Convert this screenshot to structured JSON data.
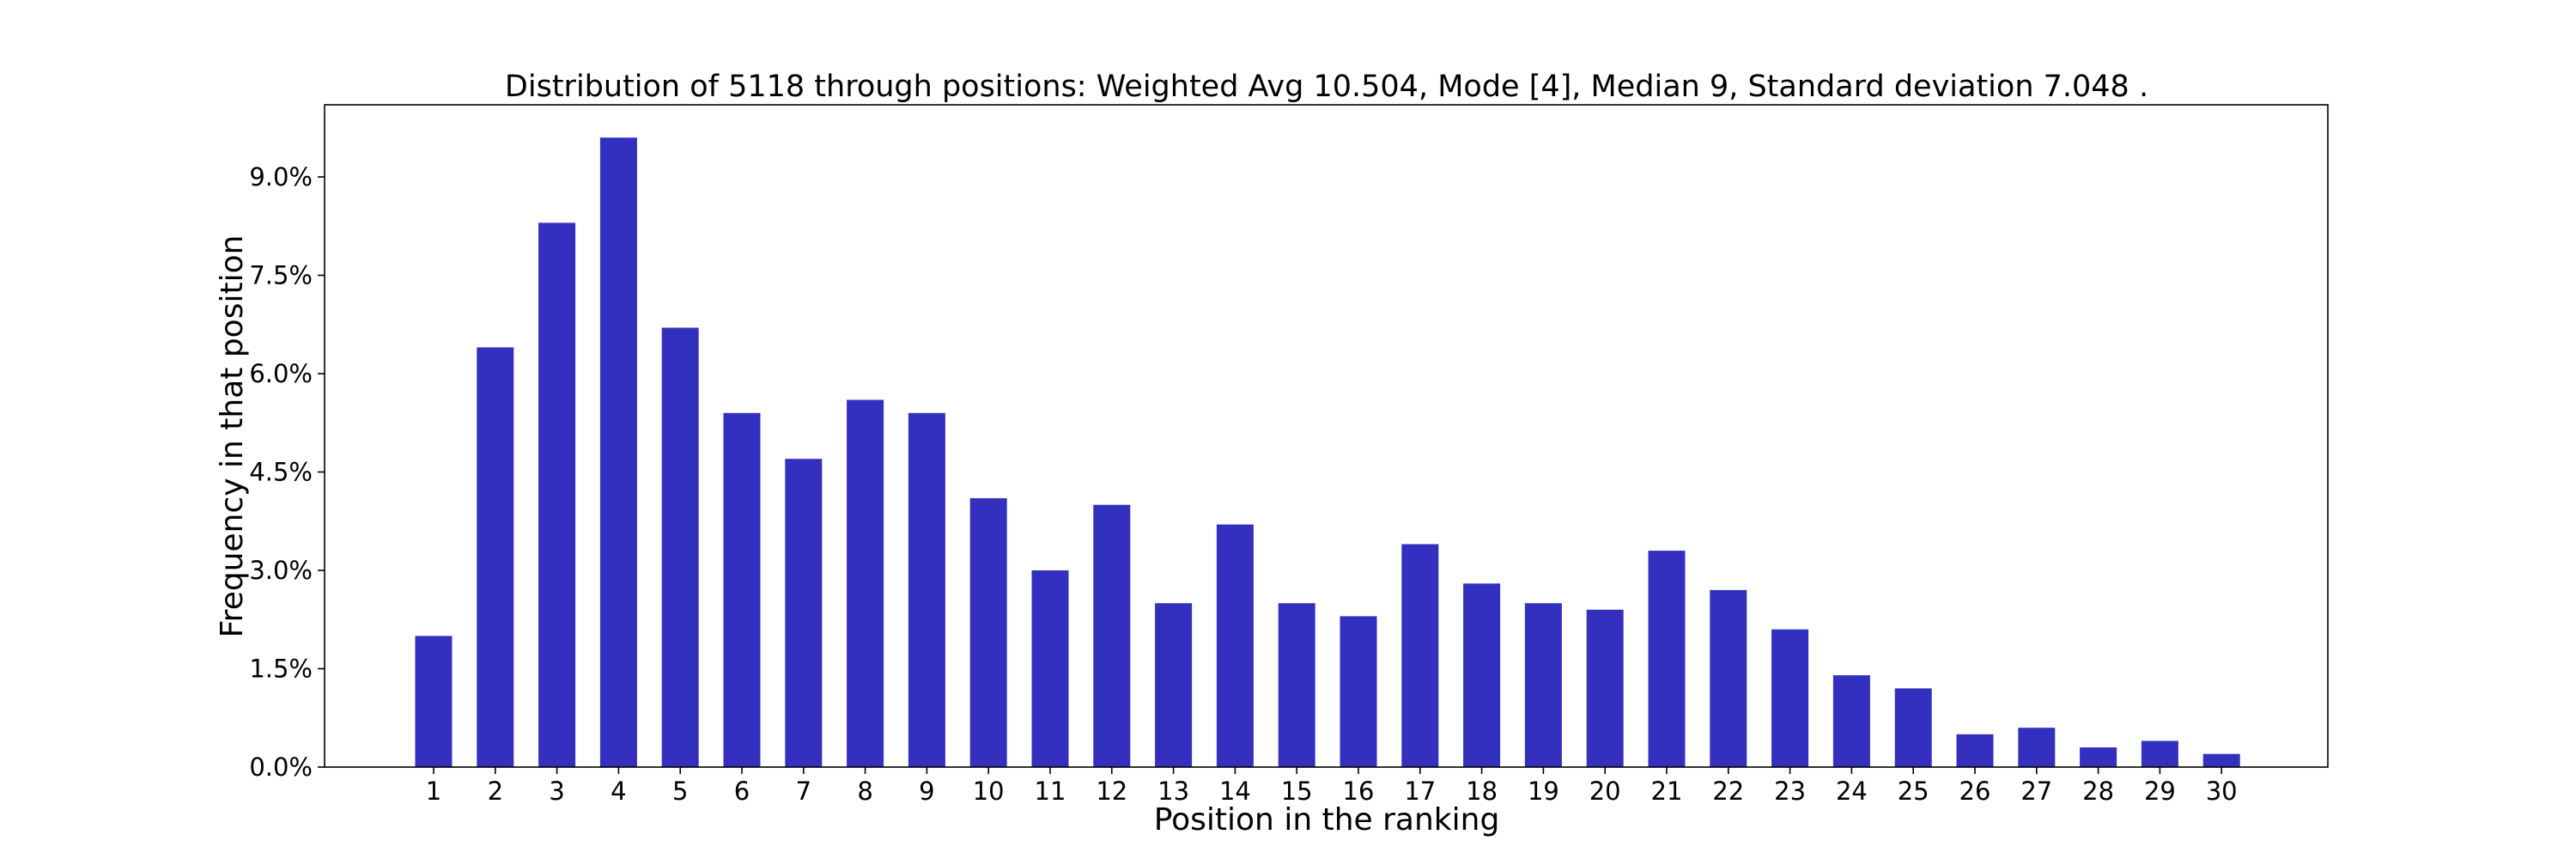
{
  "chart_data": {
    "type": "bar",
    "title": "Distribution of 5118 through positions: Weighted Avg 10.504, Mode [4], Median 9, Standard deviation 7.048 .",
    "xlabel": "Position in the ranking",
    "ylabel": "Frequency in that position",
    "categories": [
      "1",
      "2",
      "3",
      "4",
      "5",
      "6",
      "7",
      "8",
      "9",
      "10",
      "11",
      "12",
      "13",
      "14",
      "15",
      "16",
      "17",
      "18",
      "19",
      "20",
      "21",
      "22",
      "23",
      "24",
      "25",
      "26",
      "27",
      "28",
      "29",
      "30"
    ],
    "values": [
      2.0,
      6.4,
      8.3,
      9.6,
      6.7,
      5.4,
      4.7,
      5.6,
      5.4,
      4.1,
      3.0,
      4.0,
      2.5,
      3.7,
      2.5,
      2.3,
      3.4,
      2.8,
      2.5,
      2.4,
      3.3,
      2.7,
      2.1,
      1.4,
      1.2,
      0.5,
      0.6,
      0.3,
      0.4,
      0.2
    ],
    "value_unit": "percent",
    "ylim": [
      0,
      10.1
    ],
    "yticks": [
      0,
      1.5,
      3.0,
      4.5,
      6.0,
      7.5,
      9.0
    ],
    "ytick_labels": [
      "0.0%",
      "1.5%",
      "3.0%",
      "4.5%",
      "6.0%",
      "7.5%",
      "9.0%"
    ],
    "bar_color": "#3330bf",
    "grid": false,
    "legend": "none"
  }
}
